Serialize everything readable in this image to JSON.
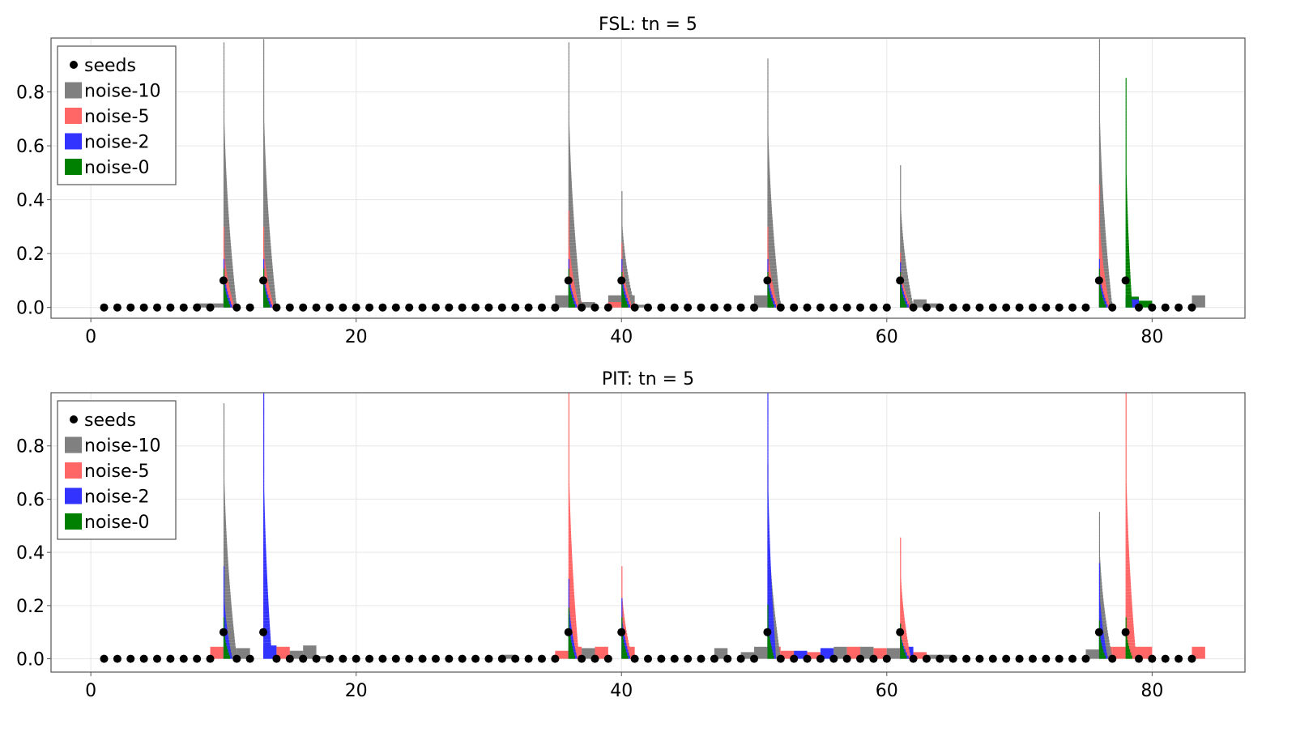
{
  "colors": {
    "seeds": "#000000",
    "noise-10": "#808080",
    "noise-5": "#ff6666",
    "noise-2": "#3333ff",
    "noise-0": "#008000",
    "frame": "#555555",
    "grid": "#e6e6e6"
  },
  "chart_data": [
    {
      "type": "bar",
      "title": "FSL: tn = 5",
      "xlim": [
        -3,
        87
      ],
      "ylim": [
        -0.04,
        1.0
      ],
      "xticks": [
        0,
        20,
        40,
        60,
        80
      ],
      "yticks": [
        0.0,
        0.2,
        0.4,
        0.6,
        0.8
      ],
      "xtick_labels": [
        "0",
        "20",
        "40",
        "60",
        "80"
      ],
      "ytick_labels": [
        "0.0",
        "0.2",
        "0.4",
        "0.6",
        "0.8"
      ],
      "grid": true,
      "legend": {
        "placement": "top-left",
        "entries": [
          "seeds",
          "noise-10",
          "noise-5",
          "noise-2",
          "noise-0"
        ]
      },
      "seed_peaks": [
        10,
        13,
        36,
        40,
        51,
        61,
        76,
        78
      ],
      "seed_low_value": 0.0,
      "seed_peak_value": 0.1,
      "seed_range": [
        1,
        83
      ],
      "peaks": [
        {
          "x": 10,
          "series": "noise-10",
          "max": 0.98
        },
        {
          "x": 10,
          "series": "noise-5",
          "max": 0.3
        },
        {
          "x": 10,
          "series": "noise-2",
          "max": 0.18
        },
        {
          "x": 10,
          "series": "noise-0",
          "max": 0.14
        },
        {
          "x": 13,
          "series": "noise-10",
          "max": 0.99
        },
        {
          "x": 13,
          "series": "noise-5",
          "max": 0.3
        },
        {
          "x": 13,
          "series": "noise-2",
          "max": 0.17
        },
        {
          "x": 13,
          "series": "noise-0",
          "max": 0.14
        },
        {
          "x": 36,
          "series": "noise-10",
          "max": 0.98
        },
        {
          "x": 36,
          "series": "noise-5",
          "max": 0.35
        },
        {
          "x": 36,
          "series": "noise-2",
          "max": 0.17
        },
        {
          "x": 36,
          "series": "noise-0",
          "max": 0.14
        },
        {
          "x": 40,
          "series": "noise-10",
          "max": 0.43
        },
        {
          "x": 40,
          "series": "noise-5",
          "max": 0.24
        },
        {
          "x": 40,
          "series": "noise-2",
          "max": 0.17
        },
        {
          "x": 40,
          "series": "noise-0",
          "max": 0.13
        },
        {
          "x": 51,
          "series": "noise-10",
          "max": 0.92
        },
        {
          "x": 51,
          "series": "noise-5",
          "max": 0.3
        },
        {
          "x": 51,
          "series": "noise-2",
          "max": 0.17
        },
        {
          "x": 51,
          "series": "noise-0",
          "max": 0.13
        },
        {
          "x": 61,
          "series": "noise-10",
          "max": 0.52
        },
        {
          "x": 61,
          "series": "noise-5",
          "max": 0.2
        },
        {
          "x": 61,
          "series": "noise-2",
          "max": 0.16
        },
        {
          "x": 61,
          "series": "noise-0",
          "max": 0.13
        },
        {
          "x": 76,
          "series": "noise-10",
          "max": 0.99
        },
        {
          "x": 76,
          "series": "noise-5",
          "max": 0.45
        },
        {
          "x": 76,
          "series": "noise-2",
          "max": 0.18
        },
        {
          "x": 76,
          "series": "noise-0",
          "max": 0.14
        },
        {
          "x": 78,
          "series": "noise-0",
          "max": 0.85
        }
      ],
      "floor_bars": [
        {
          "x": 8.5,
          "series": "noise-10",
          "value": 0.015
        },
        {
          "x": 9.5,
          "series": "noise-10",
          "value": 0.015
        },
        {
          "x": 35.5,
          "series": "noise-10",
          "value": 0.045
        },
        {
          "x": 36.5,
          "series": "noise-5",
          "value": 0.025
        },
        {
          "x": 37.5,
          "series": "noise-10",
          "value": 0.02
        },
        {
          "x": 39.5,
          "series": "noise-10",
          "value": 0.045
        },
        {
          "x": 39.5,
          "series": "noise-5",
          "value": 0.02
        },
        {
          "x": 40.5,
          "series": "noise-10",
          "value": 0.045
        },
        {
          "x": 40.5,
          "series": "noise-5",
          "value": 0.02
        },
        {
          "x": 41.5,
          "series": "noise-10",
          "value": 0.01
        },
        {
          "x": 50.5,
          "series": "noise-10",
          "value": 0.045
        },
        {
          "x": 51.5,
          "series": "noise-10",
          "value": 0.025
        },
        {
          "x": 61.5,
          "series": "noise-10",
          "value": 0.015
        },
        {
          "x": 62.5,
          "series": "noise-10",
          "value": 0.03
        },
        {
          "x": 63.5,
          "series": "noise-10",
          "value": 0.015
        },
        {
          "x": 76.5,
          "series": "noise-10",
          "value": 0.02
        },
        {
          "x": 78.5,
          "series": "noise-0",
          "value": 0.04
        },
        {
          "x": 78.5,
          "series": "noise-2",
          "value": 0.03
        },
        {
          "x": 79.5,
          "series": "noise-0",
          "value": 0.025
        },
        {
          "x": 83.5,
          "series": "noise-10",
          "value": 0.045
        }
      ]
    },
    {
      "type": "bar",
      "title": "PIT: tn = 5",
      "xlim": [
        -3,
        87
      ],
      "ylim": [
        -0.05,
        1.0
      ],
      "xticks": [
        0,
        20,
        40,
        60,
        80
      ],
      "yticks": [
        0.0,
        0.2,
        0.4,
        0.6,
        0.8
      ],
      "xtick_labels": [
        "0",
        "20",
        "40",
        "60",
        "80"
      ],
      "ytick_labels": [
        "0.0",
        "0.2",
        "0.4",
        "0.6",
        "0.8"
      ],
      "grid": true,
      "legend": {
        "placement": "top-left",
        "entries": [
          "seeds",
          "noise-10",
          "noise-5",
          "noise-2",
          "noise-0"
        ]
      },
      "seed_peaks": [
        10,
        13,
        36,
        40,
        51,
        61,
        76,
        78
      ],
      "seed_low_value": 0.0,
      "seed_peak_value": 0.1,
      "seed_range": [
        1,
        83
      ],
      "peaks": [
        {
          "x": 10,
          "series": "noise-10",
          "max": 0.95
        },
        {
          "x": 10,
          "series": "noise-2",
          "max": 0.34
        },
        {
          "x": 10,
          "series": "noise-0",
          "max": 0.15
        },
        {
          "x": 13,
          "series": "noise-2",
          "max": 1.0
        },
        {
          "x": 36,
          "series": "noise-5",
          "max": 1.0
        },
        {
          "x": 36,
          "series": "noise-2",
          "max": 0.3
        },
        {
          "x": 36,
          "series": "noise-0",
          "max": 0.19
        },
        {
          "x": 40,
          "series": "noise-5",
          "max": 0.34
        },
        {
          "x": 40,
          "series": "noise-2",
          "max": 0.22
        },
        {
          "x": 40,
          "series": "noise-0",
          "max": 0.15
        },
        {
          "x": 51,
          "series": "noise-10",
          "max": 0.73
        },
        {
          "x": 51,
          "series": "noise-2",
          "max": 1.0
        },
        {
          "x": 51,
          "series": "noise-0",
          "max": 0.2
        },
        {
          "x": 61,
          "series": "noise-5",
          "max": 0.45
        },
        {
          "x": 61,
          "series": "noise-2",
          "max": 0.13
        },
        {
          "x": 61,
          "series": "noise-0",
          "max": 0.13
        },
        {
          "x": 76,
          "series": "noise-10",
          "max": 0.55
        },
        {
          "x": 76,
          "series": "noise-2",
          "max": 0.35
        },
        {
          "x": 76,
          "series": "noise-0",
          "max": 0.14
        },
        {
          "x": 78,
          "series": "noise-5",
          "max": 1.0
        },
        {
          "x": 78,
          "series": "noise-0",
          "max": 0.15
        }
      ],
      "floor_bars": [
        {
          "x": 9.5,
          "series": "noise-5",
          "value": 0.045
        },
        {
          "x": 10.5,
          "series": "noise-10",
          "value": 0.04
        },
        {
          "x": 11.5,
          "series": "noise-10",
          "value": 0.04
        },
        {
          "x": 13.5,
          "series": "noise-2",
          "value": 0.05
        },
        {
          "x": 14.5,
          "series": "noise-5",
          "value": 0.045
        },
        {
          "x": 15.5,
          "series": "noise-10",
          "value": 0.03
        },
        {
          "x": 16.5,
          "series": "noise-10",
          "value": 0.05
        },
        {
          "x": 17.5,
          "series": "noise-10",
          "value": 0.01
        },
        {
          "x": 31.5,
          "series": "noise-10",
          "value": 0.015
        },
        {
          "x": 35.5,
          "series": "noise-5",
          "value": 0.03
        },
        {
          "x": 36.5,
          "series": "noise-5",
          "value": 0.045
        },
        {
          "x": 37.5,
          "series": "noise-10",
          "value": 0.04
        },
        {
          "x": 38.5,
          "series": "noise-5",
          "value": 0.045
        },
        {
          "x": 40.5,
          "series": "noise-5",
          "value": 0.045
        },
        {
          "x": 47.5,
          "series": "noise-10",
          "value": 0.04
        },
        {
          "x": 49.5,
          "series": "noise-10",
          "value": 0.025
        },
        {
          "x": 50.5,
          "series": "noise-10",
          "value": 0.045
        },
        {
          "x": 51.5,
          "series": "noise-5",
          "value": 0.045
        },
        {
          "x": 52.5,
          "series": "noise-5",
          "value": 0.03
        },
        {
          "x": 53.5,
          "series": "noise-2",
          "value": 0.03
        },
        {
          "x": 54.5,
          "series": "noise-5",
          "value": 0.025
        },
        {
          "x": 55.5,
          "series": "noise-2",
          "value": 0.04
        },
        {
          "x": 56.5,
          "series": "noise-10",
          "value": 0.045
        },
        {
          "x": 57.5,
          "series": "noise-5",
          "value": 0.045
        },
        {
          "x": 58.5,
          "series": "noise-10",
          "value": 0.045
        },
        {
          "x": 59.5,
          "series": "noise-5",
          "value": 0.04
        },
        {
          "x": 60.5,
          "series": "noise-10",
          "value": 0.04
        },
        {
          "x": 61.5,
          "series": "noise-2",
          "value": 0.045
        },
        {
          "x": 62.5,
          "series": "noise-5",
          "value": 0.025
        },
        {
          "x": 63.5,
          "series": "noise-10",
          "value": 0.015
        },
        {
          "x": 64.5,
          "series": "noise-10",
          "value": 0.015
        },
        {
          "x": 75.5,
          "series": "noise-10",
          "value": 0.035
        },
        {
          "x": 76.5,
          "series": "noise-5",
          "value": 0.045
        },
        {
          "x": 77.5,
          "series": "noise-5",
          "value": 0.045
        },
        {
          "x": 78.5,
          "series": "noise-5",
          "value": 0.045
        },
        {
          "x": 79.5,
          "series": "noise-5",
          "value": 0.045
        },
        {
          "x": 83.5,
          "series": "noise-5",
          "value": 0.045
        }
      ]
    }
  ]
}
